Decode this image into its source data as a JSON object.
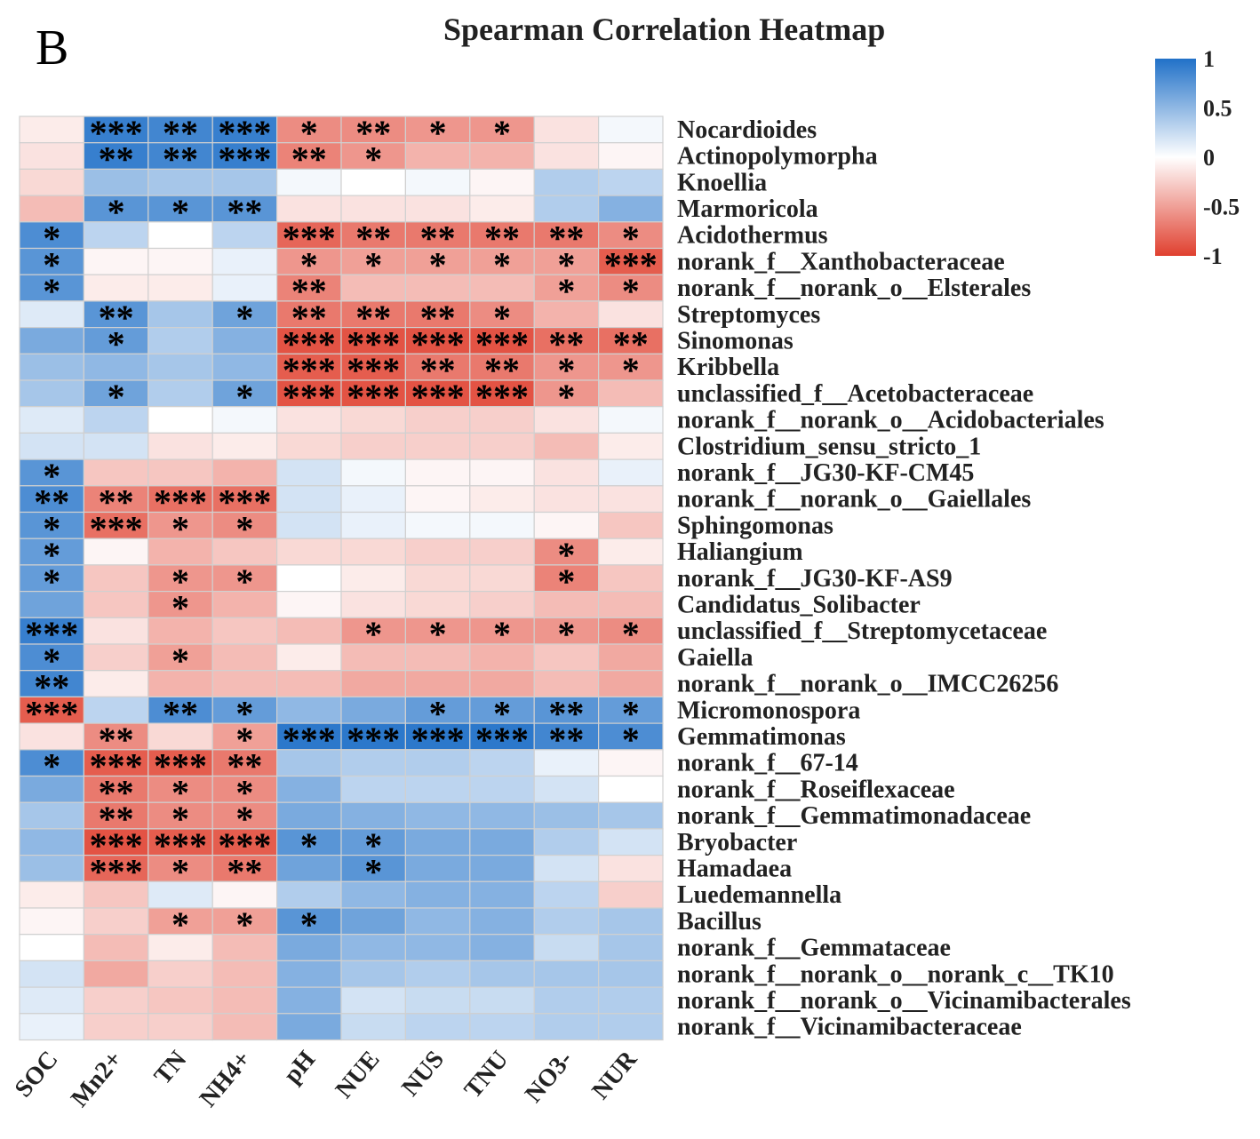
{
  "panel_label": "B",
  "chart_data": {
    "type": "heatmap",
    "title": "Spearman Correlation Heatmap",
    "columns": [
      "SOC",
      "Mn2+",
      "TN",
      "NH4+",
      "pH",
      "NUE",
      "NUS",
      "TNU",
      "NO3-",
      "NUR"
    ],
    "rows": [
      "Nocardioides",
      "Actinopolymorpha",
      "Knoellia",
      "Marmoricola",
      "Acidothermus",
      "norank_f__Xanthobacteraceae",
      "norank_f__norank_o__Elsterales",
      "Streptomyces",
      "Sinomonas",
      "Kribbella",
      "unclassified_f__Acetobacteraceae",
      "norank_f__norank_o__Acidobacteriales",
      "Clostridium_sensu_stricto_1",
      "norank_f__JG30-KF-CM45",
      "norank_f__norank_o__Gaiellales",
      "Sphingomonas",
      "Haliangium",
      "norank_f__JG30-KF-AS9",
      "Candidatus_Solibacter",
      "unclassified_f__Streptomycetaceae",
      "Gaiella",
      "norank_f__norank_o__IMCC26256",
      "Micromonospora",
      "Gemmatimonas",
      "norank_f__67-14",
      "norank_f__Roseiflexaceae",
      "norank_f__Gemmatimonadaceae",
      "Bryobacter",
      "Hamadaea",
      "Luedemannella",
      "Bacillus",
      "norank_f__Gemmataceae",
      "norank_f__norank_o__norank_c__TK10",
      "norank_f__norank_o__Vicinamibacterales",
      "norank_f__Vicinamibacteraceae"
    ],
    "values": [
      [
        -0.1,
        0.9,
        0.85,
        0.9,
        -0.6,
        -0.6,
        -0.55,
        -0.55,
        -0.15,
        0.05
      ],
      [
        -0.15,
        0.9,
        0.85,
        0.9,
        -0.65,
        -0.55,
        -0.4,
        -0.4,
        -0.15,
        -0.05
      ],
      [
        -0.2,
        0.45,
        0.4,
        0.4,
        0.05,
        0.0,
        0.05,
        -0.05,
        0.35,
        0.3
      ],
      [
        -0.35,
        0.75,
        0.75,
        0.75,
        -0.15,
        -0.15,
        -0.15,
        -0.1,
        0.35,
        0.55
      ],
      [
        0.8,
        0.3,
        0.0,
        0.3,
        -0.8,
        -0.7,
        -0.7,
        -0.7,
        -0.7,
        -0.6
      ],
      [
        0.75,
        -0.05,
        -0.05,
        0.1,
        -0.55,
        -0.5,
        -0.5,
        -0.5,
        -0.5,
        -0.85
      ],
      [
        0.75,
        -0.1,
        -0.1,
        0.1,
        -0.65,
        -0.35,
        -0.35,
        -0.35,
        -0.5,
        -0.6
      ],
      [
        0.15,
        0.75,
        0.4,
        0.65,
        -0.7,
        -0.7,
        -0.7,
        -0.6,
        -0.4,
        -0.15
      ],
      [
        0.6,
        0.7,
        0.35,
        0.55,
        -0.9,
        -0.9,
        -0.9,
        -0.9,
        -0.75,
        -0.75
      ],
      [
        0.45,
        0.5,
        0.4,
        0.5,
        -0.85,
        -0.85,
        -0.7,
        -0.7,
        -0.55,
        -0.55
      ],
      [
        0.4,
        0.65,
        0.35,
        0.65,
        -0.9,
        -0.9,
        -0.9,
        -0.9,
        -0.55,
        -0.35
      ],
      [
        0.15,
        0.3,
        0.0,
        0.05,
        -0.15,
        -0.2,
        -0.25,
        -0.25,
        -0.15,
        0.05
      ],
      [
        0.2,
        0.2,
        -0.15,
        -0.1,
        -0.2,
        -0.25,
        -0.25,
        -0.25,
        -0.35,
        -0.1
      ],
      [
        0.75,
        -0.3,
        -0.3,
        -0.4,
        0.2,
        0.05,
        -0.05,
        -0.05,
        -0.15,
        0.1
      ],
      [
        0.8,
        -0.65,
        -0.75,
        -0.75,
        0.2,
        0.1,
        -0.05,
        -0.1,
        -0.15,
        -0.15
      ],
      [
        0.75,
        -0.75,
        -0.55,
        -0.6,
        0.2,
        0.1,
        0.05,
        0.05,
        -0.05,
        -0.3
      ],
      [
        0.7,
        -0.05,
        -0.4,
        -0.3,
        -0.2,
        -0.2,
        -0.25,
        -0.25,
        -0.6,
        -0.1
      ],
      [
        0.7,
        -0.3,
        -0.55,
        -0.55,
        0.0,
        -0.1,
        -0.2,
        -0.2,
        -0.65,
        -0.3
      ],
      [
        0.65,
        -0.3,
        -0.55,
        -0.4,
        -0.05,
        -0.15,
        -0.2,
        -0.25,
        -0.35,
        -0.35
      ],
      [
        0.9,
        -0.15,
        -0.4,
        -0.3,
        -0.35,
        -0.55,
        -0.55,
        -0.55,
        -0.55,
        -0.6
      ],
      [
        0.8,
        -0.25,
        -0.5,
        -0.35,
        -0.1,
        -0.35,
        -0.35,
        -0.4,
        -0.3,
        -0.45
      ],
      [
        0.85,
        -0.1,
        -0.4,
        -0.35,
        -0.35,
        -0.45,
        -0.45,
        -0.45,
        -0.35,
        -0.45
      ],
      [
        -0.85,
        0.3,
        0.8,
        0.7,
        0.5,
        0.6,
        0.7,
        0.7,
        0.75,
        0.7
      ],
      [
        -0.15,
        -0.6,
        -0.2,
        -0.5,
        0.95,
        0.95,
        0.95,
        0.95,
        0.85,
        0.8
      ],
      [
        0.8,
        -0.85,
        -0.85,
        -0.7,
        0.4,
        0.35,
        0.35,
        0.3,
        0.1,
        -0.05
      ],
      [
        0.6,
        -0.7,
        -0.6,
        -0.6,
        0.55,
        0.3,
        0.3,
        0.3,
        0.2,
        0.0
      ],
      [
        0.4,
        -0.7,
        -0.6,
        -0.6,
        0.6,
        0.55,
        0.5,
        0.5,
        0.45,
        0.4
      ],
      [
        0.5,
        -0.9,
        -0.85,
        -0.85,
        0.75,
        0.7,
        0.6,
        0.6,
        0.35,
        0.2
      ],
      [
        0.45,
        -0.8,
        -0.6,
        -0.7,
        0.65,
        0.75,
        0.6,
        0.6,
        0.2,
        -0.15
      ],
      [
        -0.1,
        -0.3,
        0.15,
        -0.05,
        0.35,
        0.5,
        0.55,
        0.55,
        0.3,
        -0.25
      ],
      [
        -0.05,
        -0.25,
        -0.5,
        -0.5,
        0.75,
        0.65,
        0.5,
        0.55,
        0.35,
        0.4
      ],
      [
        0.0,
        -0.35,
        -0.1,
        -0.35,
        0.6,
        0.5,
        0.5,
        0.55,
        0.25,
        0.4
      ],
      [
        0.2,
        -0.45,
        -0.25,
        -0.35,
        0.55,
        0.4,
        0.35,
        0.4,
        0.4,
        0.4
      ],
      [
        0.15,
        -0.25,
        -0.3,
        -0.35,
        0.55,
        0.2,
        0.25,
        0.25,
        0.35,
        0.35
      ],
      [
        0.1,
        -0.25,
        -0.25,
        -0.35,
        0.6,
        0.25,
        0.3,
        0.3,
        0.35,
        0.35
      ]
    ],
    "significance": [
      [
        "",
        "***",
        "**",
        "***",
        "*",
        "**",
        "*",
        "*",
        "",
        ""
      ],
      [
        "",
        "**",
        "**",
        "***",
        "**",
        "*",
        "",
        "",
        "",
        ""
      ],
      [
        "",
        "",
        "",
        "",
        "",
        "",
        "",
        "",
        "",
        ""
      ],
      [
        "",
        "*",
        "*",
        "**",
        "",
        "",
        "",
        "",
        "",
        ""
      ],
      [
        "*",
        "",
        "",
        "",
        "***",
        "**",
        "**",
        "**",
        "**",
        "*"
      ],
      [
        "*",
        "",
        "",
        "",
        "*",
        "*",
        "*",
        "*",
        "*",
        "***"
      ],
      [
        "*",
        "",
        "",
        "",
        "**",
        "",
        "",
        "",
        "*",
        "*"
      ],
      [
        "",
        "**",
        "",
        "*",
        "**",
        "**",
        "**",
        "*",
        "",
        ""
      ],
      [
        "",
        "*",
        "",
        "",
        "***",
        "***",
        "***",
        "***",
        "**",
        "**"
      ],
      [
        "",
        "",
        "",
        "",
        "***",
        "***",
        "**",
        "**",
        "*",
        "*"
      ],
      [
        "",
        "*",
        "",
        "*",
        "***",
        "***",
        "***",
        "***",
        "*",
        ""
      ],
      [
        "",
        "",
        "",
        "",
        "",
        "",
        "",
        "",
        "",
        ""
      ],
      [
        "",
        "",
        "",
        "",
        "",
        "",
        "",
        "",
        "",
        ""
      ],
      [
        "*",
        "",
        "",
        "",
        "",
        "",
        "",
        "",
        "",
        ""
      ],
      [
        "**",
        "**",
        "***",
        "***",
        "",
        "",
        "",
        "",
        "",
        ""
      ],
      [
        "*",
        "***",
        "*",
        "*",
        "",
        "",
        "",
        "",
        "",
        ""
      ],
      [
        "*",
        "",
        "",
        "",
        "",
        "",
        "",
        "",
        "*",
        ""
      ],
      [
        "*",
        "",
        "*",
        "*",
        "",
        "",
        "",
        "",
        "*",
        ""
      ],
      [
        "",
        "",
        "*",
        "",
        "",
        "",
        "",
        "",
        "",
        ""
      ],
      [
        "***",
        "",
        "",
        "",
        "",
        "*",
        "*",
        "*",
        "*",
        "*"
      ],
      [
        "*",
        "",
        "*",
        "",
        "",
        "",
        "",
        "",
        "",
        ""
      ],
      [
        "**",
        "",
        "",
        "",
        "",
        "",
        "",
        "",
        "",
        ""
      ],
      [
        "***",
        "",
        "**",
        "*",
        "",
        "",
        "*",
        "*",
        "**",
        "*"
      ],
      [
        "",
        "**",
        "",
        "*",
        "***",
        "***",
        "***",
        "***",
        "**",
        "*"
      ],
      [
        "*",
        "***",
        "***",
        "**",
        "",
        "",
        "",
        "",
        "",
        ""
      ],
      [
        "",
        "**",
        "*",
        "*",
        "",
        "",
        "",
        "",
        "",
        ""
      ],
      [
        "",
        "**",
        "*",
        "*",
        "",
        "",
        "",
        "",
        "",
        ""
      ],
      [
        "",
        "***",
        "***",
        "***",
        "*",
        "*",
        "",
        "",
        "",
        ""
      ],
      [
        "",
        "***",
        "*",
        "**",
        "",
        "*",
        "",
        "",
        "",
        ""
      ],
      [
        "",
        "",
        "",
        "",
        "",
        "",
        "",
        "",
        "",
        ""
      ],
      [
        "",
        "",
        "*",
        "*",
        "*",
        "",
        "",
        "",
        "",
        ""
      ],
      [
        "",
        "",
        "",
        "",
        "",
        "",
        "",
        "",
        "",
        ""
      ],
      [
        "",
        "",
        "",
        "",
        "",
        "",
        "",
        "",
        "",
        ""
      ],
      [
        "",
        "",
        "",
        "",
        "",
        "",
        "",
        "",
        "",
        ""
      ],
      [
        "",
        "",
        "",
        "",
        "",
        "",
        "",
        "",
        "",
        ""
      ]
    ],
    "colorbar": {
      "ticks": [
        "1",
        "0.5",
        "0",
        "-0.5",
        "-1"
      ],
      "range": [
        -1,
        1
      ],
      "color_positive": "#2171c8",
      "color_zero": "#ffffff",
      "color_negative": "#e0402f"
    }
  }
}
